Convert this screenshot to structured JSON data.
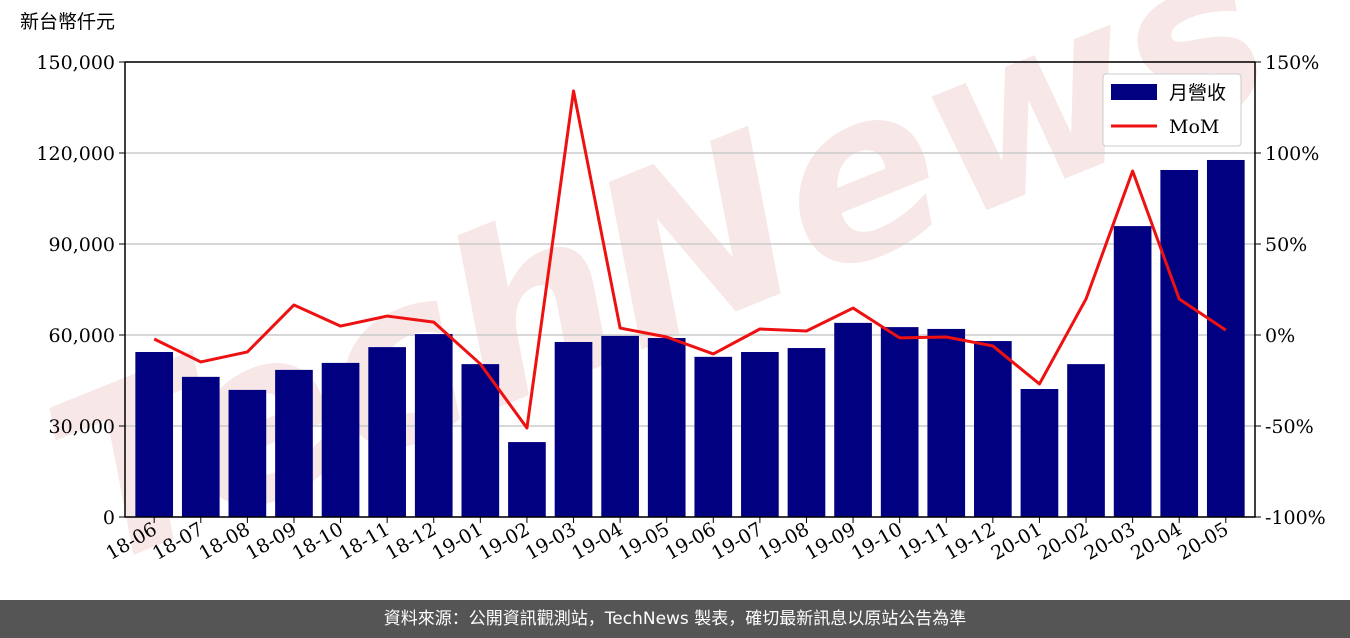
{
  "chart_data": {
    "type": "bar_line",
    "y_label": "新台幣仟元",
    "watermark": "TechNews",
    "categories": [
      "18-06",
      "18-07",
      "18-08",
      "18-09",
      "18-10",
      "18-11",
      "18-12",
      "19-01",
      "19-02",
      "19-03",
      "19-04",
      "19-05",
      "19-06",
      "19-07",
      "19-08",
      "19-09",
      "19-10",
      "19-11",
      "19-12",
      "20-01",
      "20-02",
      "20-03",
      "20-04",
      "20-05"
    ],
    "series": [
      {
        "name": "月營收",
        "type": "bar",
        "color": "#000080",
        "values": [
          54400,
          46200,
          41900,
          48500,
          50800,
          56000,
          60300,
          50400,
          24700,
          57700,
          59700,
          59000,
          52800,
          54400,
          55700,
          64000,
          62600,
          62000,
          58000,
          42200,
          50400,
          95900,
          114400,
          117700
        ]
      },
      {
        "name": "MoM",
        "type": "line",
        "axis": "y2",
        "color": "#ee1111",
        "values": [
          -2.2,
          -14.8,
          -9.3,
          16.5,
          4.9,
          10.4,
          7.1,
          -15.9,
          -51.1,
          134.1,
          3.8,
          -1.1,
          -10.4,
          3.3,
          2.2,
          14.8,
          -1.6,
          -1.1,
          -6.0,
          -26.9,
          19.8,
          90.1,
          19.8,
          2.7
        ]
      }
    ],
    "ylim": [
      0,
      150000
    ],
    "yticks": [
      {
        "value": 0,
        "label": "0"
      },
      {
        "value": 30000,
        "label": "30,000"
      },
      {
        "value": 60000,
        "label": "60,000"
      },
      {
        "value": 90000,
        "label": "90,000"
      },
      {
        "value": 120000,
        "label": "120,000"
      },
      {
        "value": 150000,
        "label": "150,000"
      }
    ],
    "y2lim": [
      -100,
      150
    ],
    "y2ticks": [
      {
        "value": -100,
        "label": "-100%"
      },
      {
        "value": -50,
        "label": "-50%"
      },
      {
        "value": 0,
        "label": "0%"
      },
      {
        "value": 50,
        "label": "50%"
      },
      {
        "value": 100,
        "label": "100%"
      },
      {
        "value": 150,
        "label": "150%"
      }
    ],
    "grid": true,
    "legend": "upper right"
  },
  "footer": "資料來源：公開資訊觀測站，TechNews 製表，確切最新訊息以原站公告為準"
}
